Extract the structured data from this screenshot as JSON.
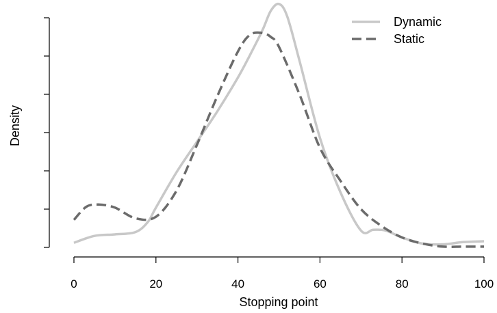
{
  "chart_data": {
    "type": "line",
    "title": "",
    "xlabel": "Stopping point",
    "ylabel": "Density",
    "xlim": [
      0,
      100
    ],
    "ylim": [
      0,
      0.03
    ],
    "x_ticks": [
      0,
      20,
      40,
      60,
      80,
      100
    ],
    "y_ticks": [
      0,
      0.005,
      0.01,
      0.015,
      0.02,
      0.025,
      0.03
    ],
    "y_tick_labels_shown": false,
    "grid": false,
    "legend_position": "top-right",
    "series": [
      {
        "name": "Dynamic",
        "style": "solid",
        "color": "#c8c8c8",
        "x": [
          0,
          5,
          10,
          15,
          18,
          20,
          25,
          30,
          35,
          40,
          43,
          46,
          48,
          50,
          52,
          55,
          60,
          65,
          70,
          73,
          76,
          80,
          85,
          90,
          95,
          100
        ],
        "y": [
          0.0006,
          0.0015,
          0.0017,
          0.002,
          0.0033,
          0.0052,
          0.0098,
          0.0138,
          0.0178,
          0.0222,
          0.0252,
          0.0284,
          0.0309,
          0.0318,
          0.0302,
          0.0244,
          0.0143,
          0.0072,
          0.0022,
          0.0023,
          0.0022,
          0.0013,
          0.0005,
          0.0004,
          0.0007,
          0.0008
        ]
      },
      {
        "name": "Static",
        "style": "dashed",
        "color": "#6b6b6b",
        "x": [
          0,
          3,
          6,
          10,
          15,
          20,
          25,
          30,
          35,
          40,
          43,
          46,
          48,
          50,
          55,
          60,
          65,
          70,
          75,
          80,
          85,
          90,
          95,
          100
        ],
        "y": [
          0.0036,
          0.0053,
          0.0056,
          0.0052,
          0.0038,
          0.004,
          0.0074,
          0.0134,
          0.0198,
          0.0256,
          0.0278,
          0.028,
          0.0275,
          0.0262,
          0.02,
          0.013,
          0.0087,
          0.005,
          0.0028,
          0.0013,
          0.0005,
          0.0001,
          0.0001,
          0.0001
        ]
      }
    ]
  }
}
